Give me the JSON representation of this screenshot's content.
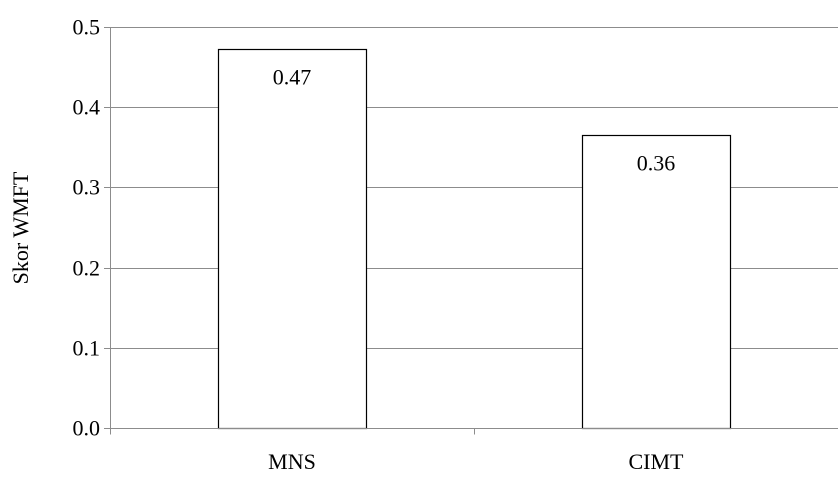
{
  "chart_data": {
    "type": "bar",
    "categories": [
      "MNS",
      "CIMT"
    ],
    "values": [
      0.472,
      0.365
    ],
    "data_labels": [
      "0.47",
      "0.36"
    ],
    "title": "",
    "xlabel": "",
    "ylabel": "Skor WMFT",
    "ylim": [
      0,
      0.5
    ],
    "yticks": [
      0.0,
      0.1,
      0.2,
      0.3,
      0.4,
      0.5
    ],
    "ytick_labels": [
      "0.0",
      "0.1",
      "0.2",
      "0.3",
      "0.4",
      "0.5"
    ],
    "grid": true,
    "legend": "none",
    "colors": {
      "bar_fill": "#ffffff",
      "bar_stroke": "#000000",
      "grid": "#8c8c8c",
      "axis": "#8c8c8c"
    }
  }
}
